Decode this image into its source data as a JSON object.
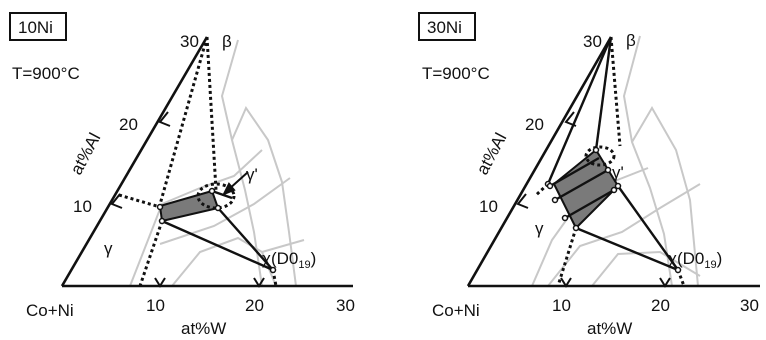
{
  "panels": [
    {
      "composition_label": "10Ni",
      "temperature": "T=900°C",
      "corner_label": "Co+Ni",
      "x_axis_label": "at%W",
      "y_axis_label": "at%Al",
      "x_ticks": [
        "10",
        "20",
        "30"
      ],
      "y_ticks": [
        "10",
        "20",
        "30"
      ],
      "phases": {
        "beta": "β",
        "gamma": "γ",
        "gamma_prime": "γ'",
        "chi": "χ",
        "chi_structure": "(D0",
        "chi_sub": "19",
        "chi_close": ")"
      }
    },
    {
      "composition_label": "30Ni",
      "temperature": "T=900°C",
      "corner_label": "Co+Ni",
      "x_axis_label": "at%W",
      "y_axis_label": "at%Al",
      "x_ticks": [
        "10",
        "20",
        "30"
      ],
      "y_ticks": [
        "10",
        "20",
        "30"
      ],
      "phases": {
        "beta": "β",
        "gamma": "γ",
        "gamma_prime": "γ'",
        "chi": "χ",
        "chi_structure": "(D0",
        "chi_sub": "19",
        "chi_close": ")"
      }
    }
  ],
  "colors": {
    "line": "#111111",
    "boundary": "#c8c8c8",
    "tie_region": "#7a7a7a"
  }
}
